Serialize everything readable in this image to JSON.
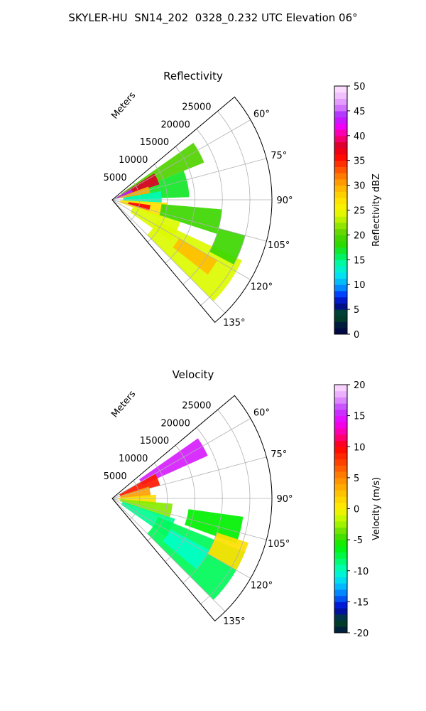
{
  "figure": {
    "title": "SKYLER-HU  SN14_202  0328_0.232 UTC Elevation 06°"
  },
  "chart_data": [
    {
      "type": "heatmap",
      "projection": "polar sector (PPI)",
      "title": "Reflectivity",
      "radial_axis_label": "Meters",
      "radial_ticks": [
        5000,
        10000,
        15000,
        20000,
        25000
      ],
      "radial_tick_labels": [
        "5000",
        "10000",
        "15000",
        "20000",
        "25000"
      ],
      "rlim": [
        0,
        29000
      ],
      "azimuth_range_deg": [
        50,
        140
      ],
      "azimuth_ticks": [
        "60°",
        "75°",
        "90°",
        "105°",
        "120°",
        "135°"
      ],
      "azimuth_tick_values": [
        60,
        75,
        90,
        105,
        120,
        135
      ],
      "grid": true,
      "colorbar": {
        "label": "Reflectivity dBZ",
        "range": [
          0,
          50
        ],
        "ticks": [
          "0",
          "5",
          "10",
          "15",
          "20",
          "25",
          "30",
          "35",
          "40",
          "45",
          "50"
        ]
      },
      "regions": [
        {
          "az": [
            55,
            68
          ],
          "r": [
            2000,
            18000
          ],
          "value": 20
        },
        {
          "az": [
            68,
            88
          ],
          "r": [
            2500,
            14000
          ],
          "value": 17
        },
        {
          "az": [
            58,
            72
          ],
          "r": [
            1000,
            9000
          ],
          "value": 38
        },
        {
          "az": [
            62,
            70
          ],
          "r": [
            500,
            4000
          ],
          "value": 44
        },
        {
          "az": [
            70,
            80
          ],
          "r": [
            1500,
            7000
          ],
          "value": 30
        },
        {
          "az": [
            80,
            95
          ],
          "r": [
            2000,
            9000
          ],
          "value": 14
        },
        {
          "az": [
            93,
            110
          ],
          "r": [
            1500,
            10000
          ],
          "value": 27
        },
        {
          "az": [
            98,
            106
          ],
          "r": [
            3000,
            7000
          ],
          "value": 36
        },
        {
          "az": [
            95,
            108
          ],
          "r": [
            9000,
            20000
          ],
          "value": 19
        },
        {
          "az": [
            108,
            125
          ],
          "r": [
            4000,
            13000
          ],
          "value": 24
        },
        {
          "az": [
            115,
            135
          ],
          "r": [
            9000,
            26000
          ],
          "value": 24
        },
        {
          "az": [
            120,
            128
          ],
          "r": [
            14000,
            22000
          ],
          "value": 29
        },
        {
          "az": [
            105,
            118
          ],
          "r": [
            20000,
            25000
          ],
          "value": 19
        }
      ]
    },
    {
      "type": "heatmap",
      "projection": "polar sector (PPI)",
      "title": "Velocity",
      "radial_axis_label": "Meters",
      "radial_ticks": [
        5000,
        10000,
        15000,
        20000,
        25000
      ],
      "radial_tick_labels": [
        "5000",
        "10000",
        "15000",
        "20000",
        "25000"
      ],
      "rlim": [
        0,
        29000
      ],
      "azimuth_range_deg": [
        50,
        140
      ],
      "azimuth_ticks": [
        "60°",
        "75°",
        "90°",
        "105°",
        "120°",
        "135°"
      ],
      "azimuth_tick_values": [
        60,
        75,
        90,
        105,
        120,
        135
      ],
      "grid": true,
      "colorbar": {
        "label": "Velocity (m/s)",
        "range": [
          -20,
          20
        ],
        "ticks": [
          "-20",
          "-15",
          "-10",
          "-5",
          "0",
          "5",
          "10",
          "15",
          "20"
        ]
      },
      "regions": [
        {
          "az": [
            55,
            66
          ],
          "r": [
            6000,
            19000
          ],
          "value": 15
        },
        {
          "az": [
            60,
            75
          ],
          "r": [
            1500,
            9000
          ],
          "value": 9
        },
        {
          "az": [
            72,
            88
          ],
          "r": [
            1500,
            7000
          ],
          "value": 4
        },
        {
          "az": [
            85,
            98
          ],
          "r": [
            1000,
            8000
          ],
          "value": 1
        },
        {
          "az": [
            95,
            110
          ],
          "r": [
            1500,
            11000
          ],
          "value": -3
        },
        {
          "az": [
            108,
            125
          ],
          "r": [
            2000,
            12000
          ],
          "value": -9
        },
        {
          "az": [
            112,
            135
          ],
          "r": [
            9000,
            26000
          ],
          "value": -8
        },
        {
          "az": [
            118,
            130
          ],
          "r": [
            12000,
            20000
          ],
          "value": -10
        },
        {
          "az": [
            98,
            110
          ],
          "r": [
            14000,
            24000
          ],
          "value": -6
        },
        {
          "az": [
            108,
            120
          ],
          "r": [
            20000,
            26000
          ],
          "value": 1
        }
      ]
    }
  ]
}
